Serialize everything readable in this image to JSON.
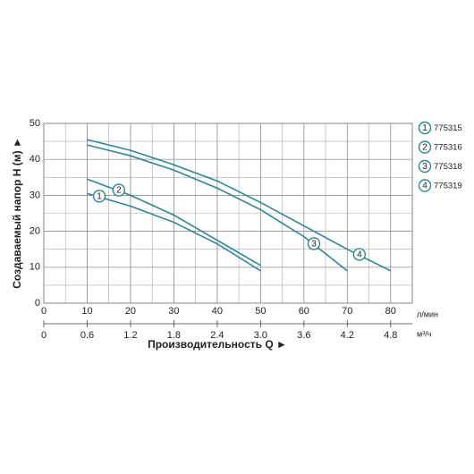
{
  "chart_data": {
    "type": "line",
    "ylabel": "Создаваемый напор H (м) ►",
    "xlabel": "Производительность Q ►",
    "xunit": "л/мин",
    "x2unit": "м³/ч",
    "xlim": [
      0,
      85
    ],
    "ylim": [
      0,
      50
    ],
    "xticks": [
      0,
      10,
      20,
      30,
      40,
      50,
      60,
      70,
      80
    ],
    "yticks": [
      0,
      10,
      20,
      30,
      40,
      50
    ],
    "x2lim": [
      0,
      5.1
    ],
    "x2ticks": [
      0,
      0.6,
      1.2,
      1.8,
      2.4,
      {
        "value": 3,
        "label": "3.0"
      },
      3.6,
      4.2,
      4.8
    ],
    "grid": true,
    "series": [
      {
        "name": "775315",
        "marker": "1",
        "color": "#2e8795",
        "x": [
          10,
          20,
          30,
          40,
          50
        ],
        "values": [
          30.5,
          27,
          22.5,
          16.5,
          9
        ]
      },
      {
        "name": "775316",
        "marker": "2",
        "color": "#2e8795",
        "x": [
          10,
          20,
          30,
          40,
          50
        ],
        "values": [
          34.5,
          30,
          24.5,
          17.5,
          10.5
        ]
      },
      {
        "name": "775318",
        "marker": "3",
        "color": "#2e8795",
        "x": [
          10,
          20,
          30,
          40,
          50,
          60,
          70
        ],
        "values": [
          44,
          41,
          37,
          32,
          26,
          18.5,
          9
        ]
      },
      {
        "name": "775319",
        "marker": "4",
        "color": "#2e8795",
        "x": [
          10,
          20,
          30,
          40,
          50,
          60,
          70,
          80
        ],
        "values": [
          45.5,
          42.5,
          38.5,
          34,
          28,
          21.5,
          15,
          9
        ]
      }
    ]
  }
}
